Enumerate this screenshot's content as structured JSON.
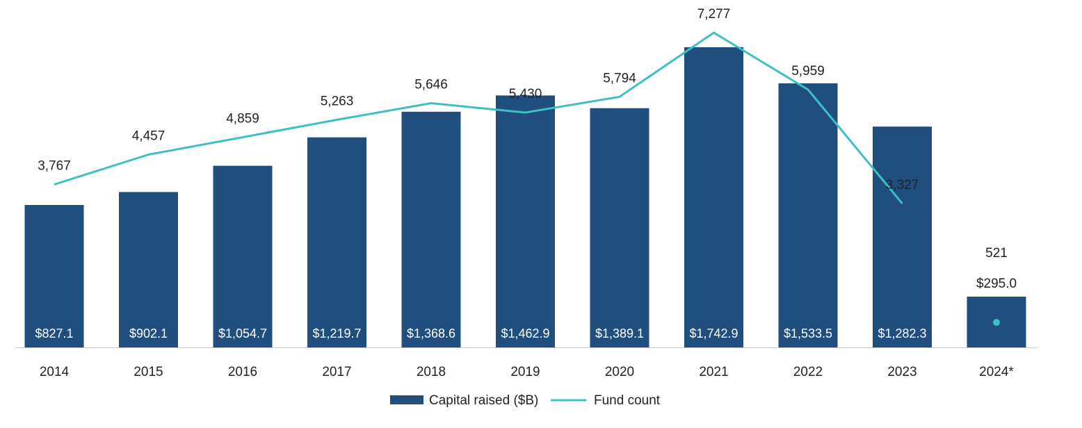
{
  "chart_data": {
    "type": "bar",
    "categories": [
      "2014",
      "2015",
      "2016",
      "2017",
      "2018",
      "2019",
      "2020",
      "2021",
      "2022",
      "2023",
      "2024*"
    ],
    "series": [
      {
        "name": "Capital raised ($B)",
        "type": "bar",
        "values": [
          827.1,
          902.1,
          1054.7,
          1219.7,
          1368.6,
          1462.9,
          1389.1,
          1742.9,
          1533.5,
          1282.3,
          295.0
        ],
        "labels": [
          "$827.1",
          "$902.1",
          "$1,054.7",
          "$1,219.7",
          "$1,368.6",
          "$1,462.9",
          "$1,389.1",
          "$1,742.9",
          "$1,533.5",
          "$1,282.3",
          "$295.0"
        ],
        "color": "#1f4e7f"
      },
      {
        "name": "Fund count",
        "type": "line",
        "values": [
          3767,
          4457,
          4859,
          5263,
          5646,
          5430,
          5794,
          7277,
          5959,
          3327,
          521
        ],
        "labels": [
          "3,767",
          "4,457",
          "4,859",
          "5,263",
          "5,646",
          "5,430",
          "5,794",
          "7,277",
          "5,959",
          "3,327",
          "521"
        ],
        "color": "#3dbfc4"
      }
    ],
    "title": "",
    "xlabel": "",
    "ylabel": "",
    "legend": "bottom-center",
    "grid": false
  }
}
